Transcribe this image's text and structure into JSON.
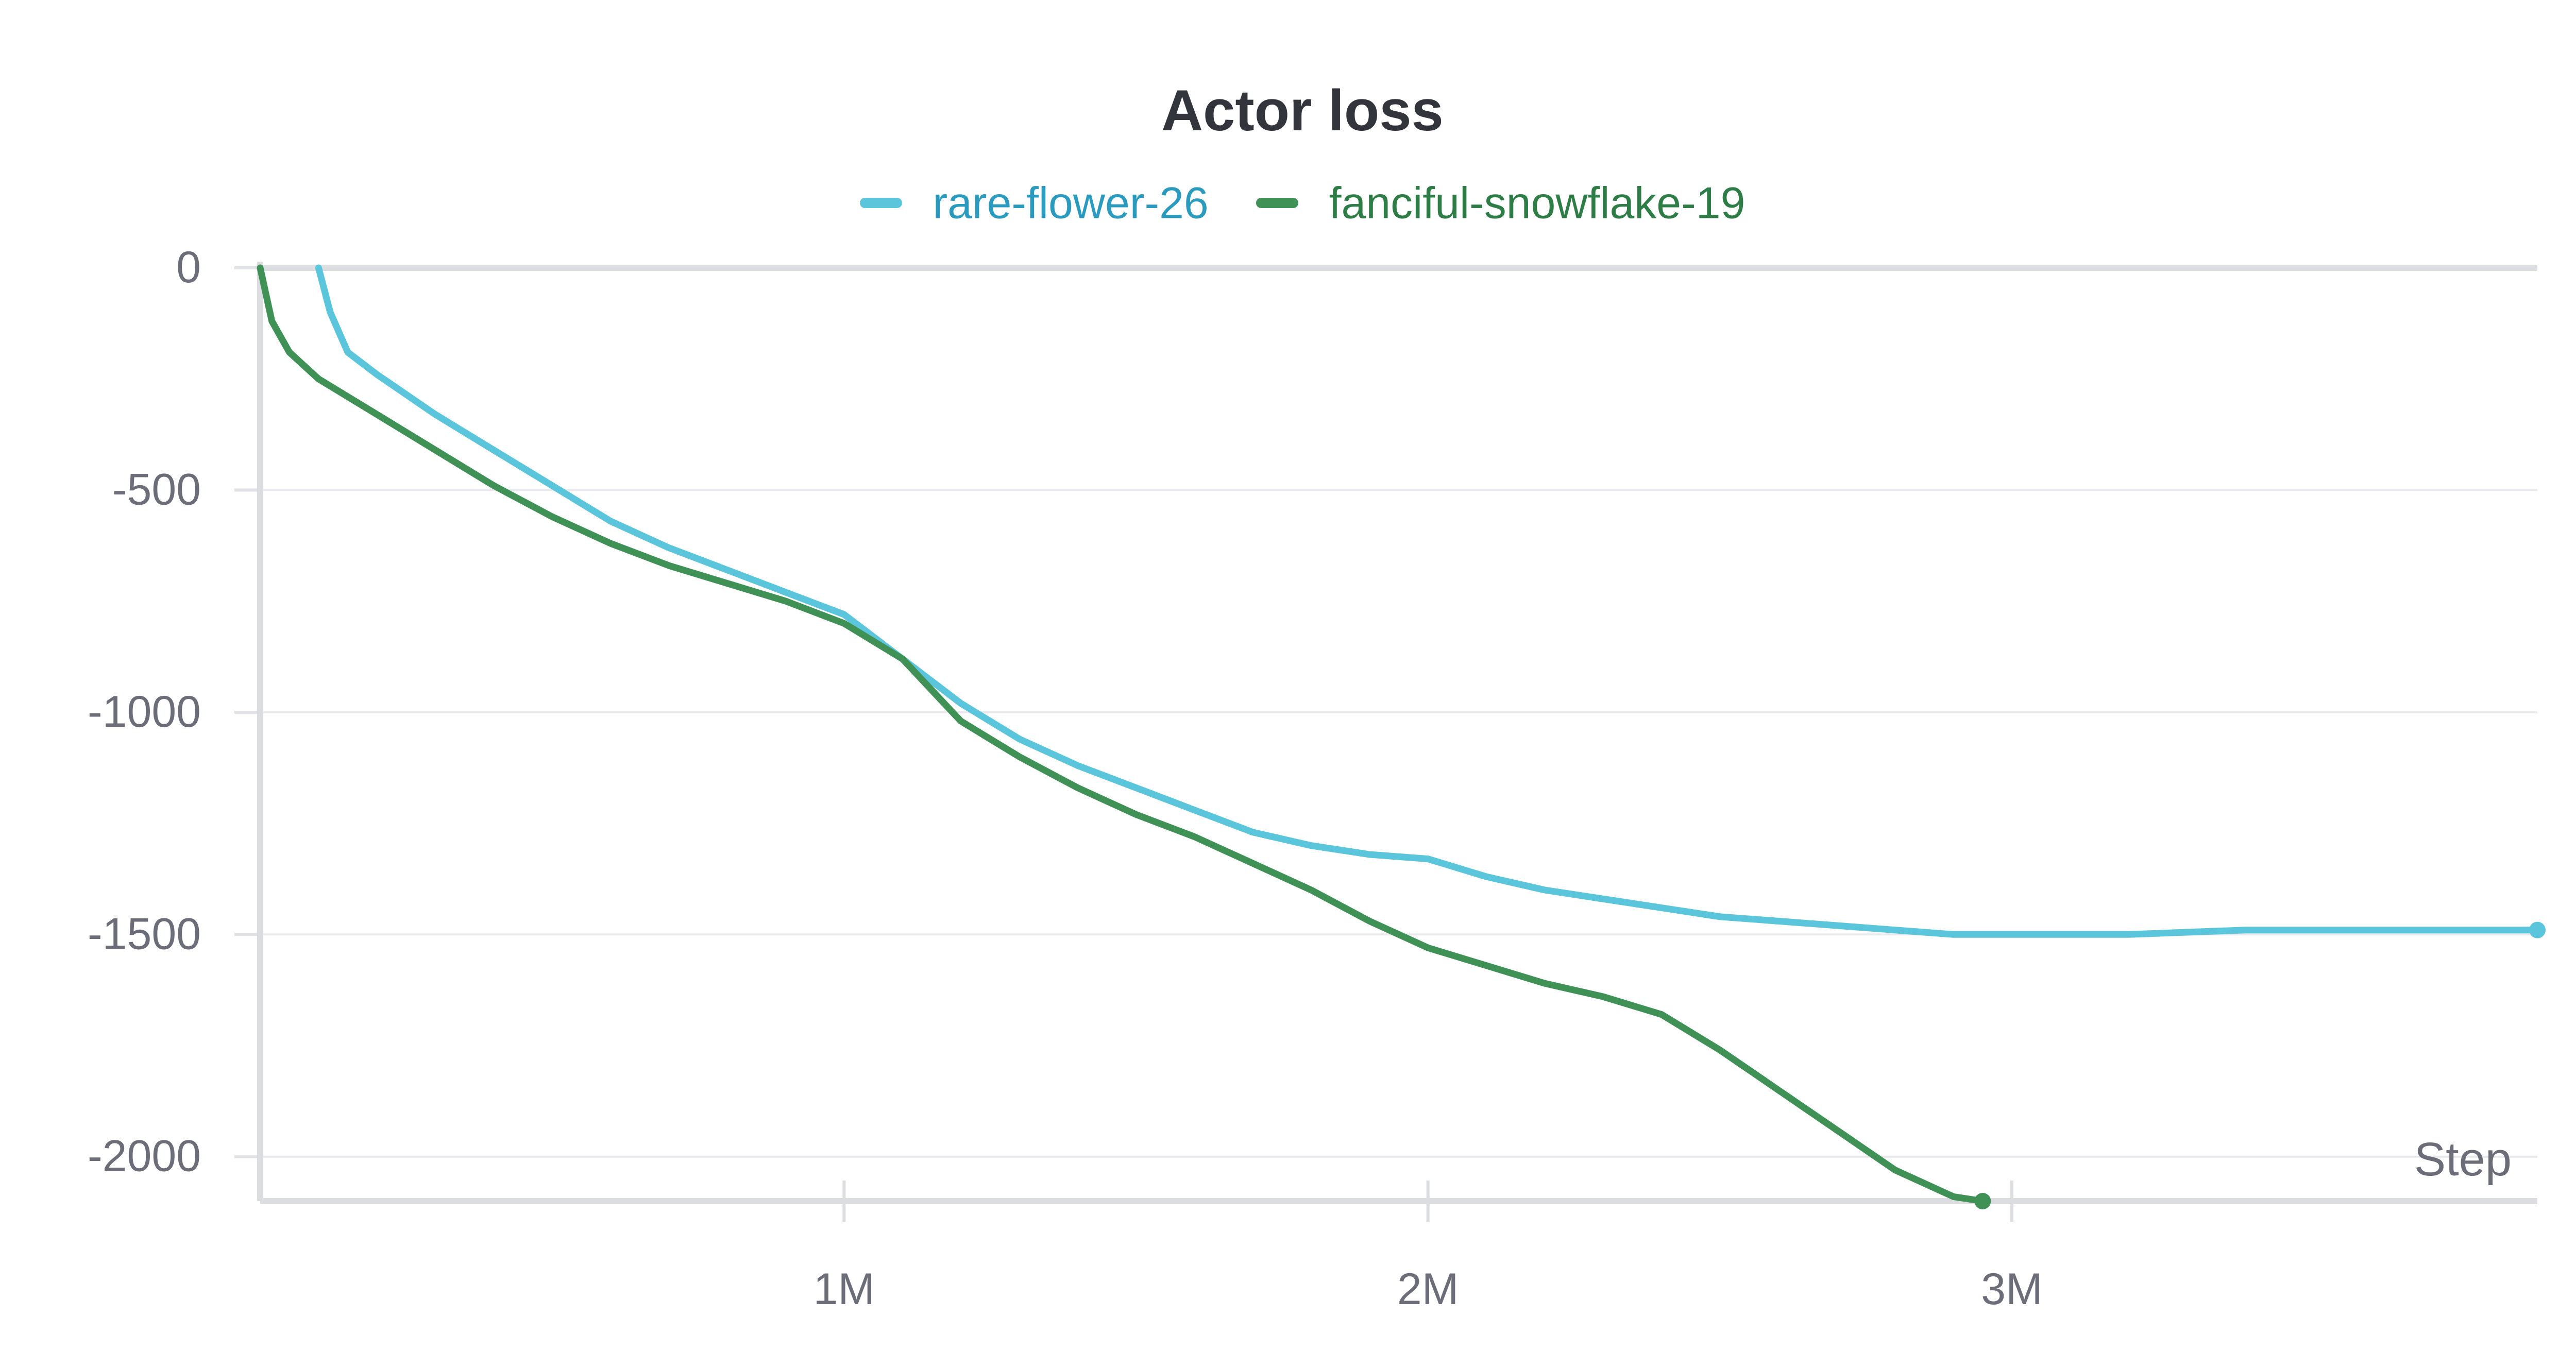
{
  "chart_data": {
    "type": "line",
    "title": "Actor loss",
    "xlabel": "Step",
    "ylabel": "",
    "xlim": [
      0,
      3900000
    ],
    "ylim": [
      -2100,
      0
    ],
    "x_ticks": [
      {
        "value": 1000000,
        "label": "1M"
      },
      {
        "value": 2000000,
        "label": "2M"
      },
      {
        "value": 3000000,
        "label": "3M"
      }
    ],
    "y_ticks": [
      {
        "value": 0,
        "label": "0"
      },
      {
        "value": -500,
        "label": "-500"
      },
      {
        "value": -1000,
        "label": "-1000"
      },
      {
        "value": -1500,
        "label": "-1500"
      },
      {
        "value": -2000,
        "label": "-2000"
      }
    ],
    "grid": "horizontal",
    "legend_position": "top-center",
    "series": [
      {
        "name": "rare-flower-26",
        "color": "#5bc5db",
        "label_color": "#2a9bbf",
        "x": [
          100000,
          120000,
          150000,
          200000,
          300000,
          400000,
          500000,
          600000,
          700000,
          800000,
          900000,
          1000000,
          1100000,
          1200000,
          1300000,
          1400000,
          1500000,
          1600000,
          1700000,
          1800000,
          1900000,
          2000000,
          2100000,
          2200000,
          2300000,
          2400000,
          2500000,
          2600000,
          2700000,
          2800000,
          2900000,
          3000000,
          3200000,
          3400000,
          3600000,
          3800000,
          3900000
        ],
        "y": [
          0,
          -100,
          -190,
          -240,
          -330,
          -410,
          -490,
          -570,
          -630,
          -680,
          -730,
          -780,
          -880,
          -980,
          -1060,
          -1120,
          -1170,
          -1220,
          -1270,
          -1300,
          -1320,
          -1330,
          -1370,
          -1400,
          -1420,
          -1440,
          -1460,
          -1470,
          -1480,
          -1490,
          -1500,
          -1500,
          -1500,
          -1490,
          -1490,
          -1490,
          -1490
        ]
      },
      {
        "name": "fanciful-snowflake-19",
        "color": "#3f9155",
        "label_color": "#2e7d46",
        "x": [
          0,
          20000,
          50000,
          100000,
          200000,
          300000,
          400000,
          500000,
          600000,
          700000,
          800000,
          900000,
          1000000,
          1100000,
          1200000,
          1300000,
          1400000,
          1500000,
          1600000,
          1700000,
          1800000,
          1900000,
          2000000,
          2100000,
          2200000,
          2300000,
          2400000,
          2500000,
          2600000,
          2700000,
          2800000,
          2900000,
          2950000
        ],
        "y": [
          0,
          -120,
          -190,
          -250,
          -330,
          -410,
          -490,
          -560,
          -620,
          -670,
          -710,
          -750,
          -800,
          -880,
          -1020,
          -1100,
          -1170,
          -1230,
          -1280,
          -1340,
          -1400,
          -1470,
          -1530,
          -1570,
          -1610,
          -1640,
          -1680,
          -1760,
          -1850,
          -1940,
          -2030,
          -2090,
          -2100
        ]
      }
    ]
  }
}
